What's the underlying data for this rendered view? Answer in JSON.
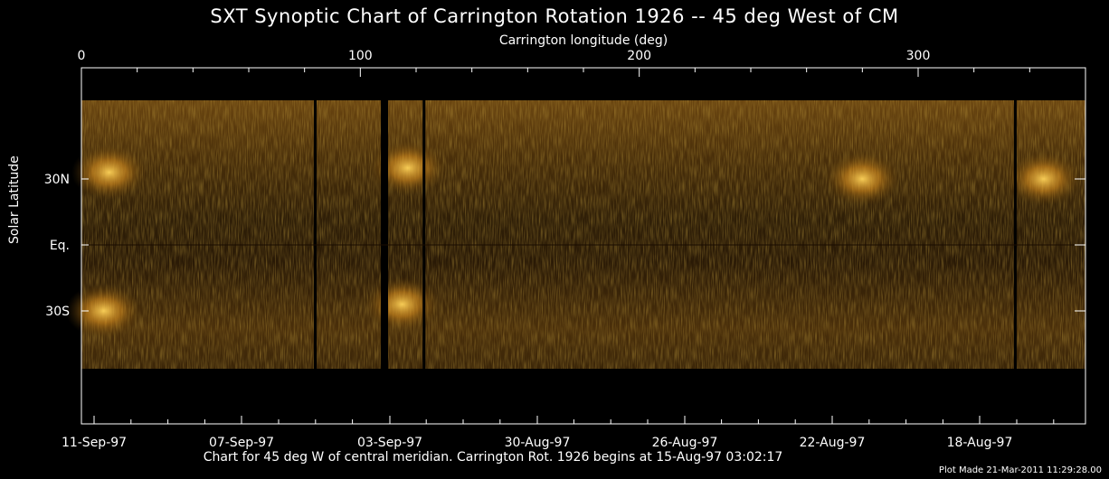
{
  "title": "SXT Synoptic Chart of Carrington Rotation 1926 -- 45 deg West of CM",
  "top_axis_label": "Carrington longitude (deg)",
  "left_axis_label": "Solar Latitude",
  "bottom_text": "Chart for 45 deg W of central meridian.  Carrington Rot. 1926 begins at 15-Aug-97 03:02:17",
  "footer": "Plot Made 21-Mar-2011 11:29:28.00",
  "chart_data": {
    "type": "heatmap",
    "title": "SXT Synoptic Chart of Carrington Rotation 1926 -- 45 deg West of CM",
    "xlabel": "Carrington longitude (deg)",
    "ylabel": "Solar Latitude",
    "xlim": [
      0,
      360
    ],
    "x_ticks": [
      0,
      100,
      200,
      300
    ],
    "x_tick_labels": [
      "0",
      "100",
      "200",
      "300"
    ],
    "y_ticks": [
      30,
      0,
      -30
    ],
    "y_tick_labels": [
      "30N",
      "Eq.",
      "30S"
    ],
    "date_ticks": [
      "11-Sep-97",
      "07-Sep-97",
      "03-Sep-97",
      "30-Aug-97",
      "26-Aug-97",
      "22-Aug-97",
      "18-Aug-97"
    ],
    "colormap": "solar-yellow-orange",
    "colors": {
      "bright": "#ffc23a",
      "mid": "#8a5a12",
      "dark": "#1a1206"
    },
    "data_gaps_longitude": [
      84,
      108,
      123,
      335
    ],
    "bright_regions": [
      {
        "lon": 10,
        "lat": 33
      },
      {
        "lon": 8,
        "lat": -30
      },
      {
        "lon": 117,
        "lat": 35
      },
      {
        "lon": 115,
        "lat": -27
      },
      {
        "lon": 280,
        "lat": 30
      },
      {
        "lon": 345,
        "lat": 30
      }
    ]
  }
}
